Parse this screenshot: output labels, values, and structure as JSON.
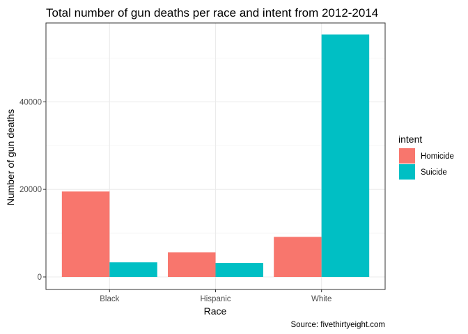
{
  "chart_data": {
    "type": "bar",
    "title": "Total number of gun deaths per race and intent from 2012-2014",
    "xlabel": "Race",
    "ylabel": "Number of gun deaths",
    "categories": [
      "Black",
      "Hispanic",
      "White"
    ],
    "series": [
      {
        "name": "Homicide",
        "color": "#F8766D",
        "values": [
          19510,
          5634,
          9147
        ]
      },
      {
        "name": "Suicide",
        "color": "#00BFC4",
        "values": [
          3332,
          3171,
          55372
        ]
      }
    ],
    "ylim": [
      0,
      58000
    ],
    "yticks": [
      0,
      20000,
      40000
    ],
    "ytick_labels": [
      "0",
      "20000",
      "40000"
    ],
    "legend_title": "intent",
    "legend_position": "right",
    "grid": true,
    "caption": "Source: fivethirtyeight.com"
  }
}
